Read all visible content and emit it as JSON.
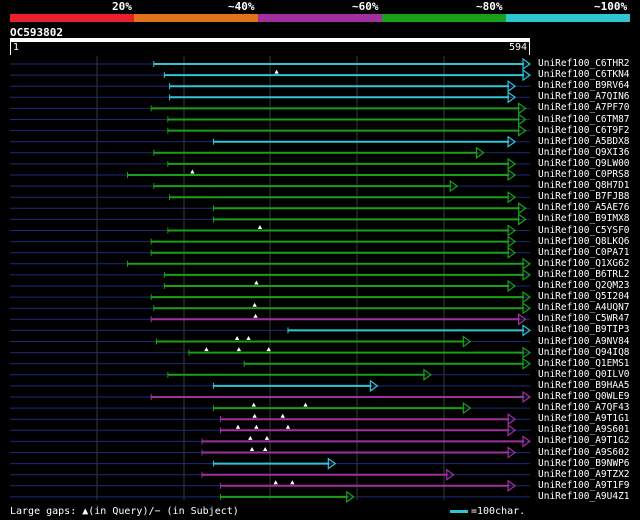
{
  "legend": {
    "segments": [
      {
        "label": "20%",
        "color": "#e8202a"
      },
      {
        "label": "~40%",
        "color": "#e0721e"
      },
      {
        "label": "~60%",
        "color": "#a030a0"
      },
      {
        "label": "~80%",
        "color": "#18a018"
      },
      {
        "label": "~100%",
        "color": "#2fc6d4"
      }
    ]
  },
  "query": {
    "id": "OC593802",
    "start": "1",
    "end": "594",
    "length": 594
  },
  "hits": [
    {
      "label": "UniRef100_C6THR2",
      "color": "#2fc6d4",
      "start": 165,
      "end": 594,
      "marks": []
    },
    {
      "label": "UniRef100_C6TKN4",
      "color": "#2fc6d4",
      "start": 177,
      "end": 594,
      "marks": [
        305
      ]
    },
    {
      "label": "UniRef100_B9RV64",
      "color": "#2fc6d4",
      "start": 183,
      "end": 577,
      "marks": []
    },
    {
      "label": "UniRef100_A7QIN6",
      "color": "#2fc6d4",
      "start": 183,
      "end": 577,
      "marks": []
    },
    {
      "label": "UniRef100_A7PF70",
      "color": "#18a018",
      "start": 162,
      "end": 589,
      "marks": []
    },
    {
      "label": "UniRef100_C6TM87",
      "color": "#18a018",
      "start": 181,
      "end": 589,
      "marks": []
    },
    {
      "label": "UniRef100_C6T9F2",
      "color": "#18a018",
      "start": 181,
      "end": 589,
      "marks": []
    },
    {
      "label": "UniRef100_A5BDX8",
      "color": "#2fc6d4",
      "start": 233,
      "end": 577,
      "marks": []
    },
    {
      "label": "UniRef100_Q9XI36",
      "color": "#18a018",
      "start": 165,
      "end": 541,
      "marks": []
    },
    {
      "label": "UniRef100_Q9LW00",
      "color": "#18a018",
      "start": 181,
      "end": 577,
      "marks": []
    },
    {
      "label": "UniRef100_C0PRS8",
      "color": "#18a018",
      "start": 135,
      "end": 577,
      "marks": [
        209
      ]
    },
    {
      "label": "UniRef100_Q8H7D1",
      "color": "#18a018",
      "start": 165,
      "end": 511,
      "marks": []
    },
    {
      "label": "UniRef100_B7FJB8",
      "color": "#18a018",
      "start": 183,
      "end": 577,
      "marks": []
    },
    {
      "label": "UniRef100_A5AE76",
      "color": "#18a018",
      "start": 233,
      "end": 589,
      "marks": []
    },
    {
      "label": "UniRef100_B9IMX8",
      "color": "#18a018",
      "start": 233,
      "end": 589,
      "marks": []
    },
    {
      "label": "UniRef100_C5YSF0",
      "color": "#18a018",
      "start": 181,
      "end": 577,
      "marks": [
        286
      ]
    },
    {
      "label": "UniRef100_Q8LKQ6",
      "color": "#18a018",
      "start": 162,
      "end": 577,
      "marks": []
    },
    {
      "label": "UniRef100_C0PA71",
      "color": "#18a018",
      "start": 162,
      "end": 577,
      "marks": []
    },
    {
      "label": "UniRef100_Q1XG62",
      "color": "#18a018",
      "start": 135,
      "end": 594,
      "marks": []
    },
    {
      "label": "UniRef100_B6TRL2",
      "color": "#18a018",
      "start": 177,
      "end": 594,
      "marks": []
    },
    {
      "label": "UniRef100_Q2QM23",
      "color": "#18a018",
      "start": 177,
      "end": 577,
      "marks": [
        282
      ]
    },
    {
      "label": "UniRef100_Q5I204",
      "color": "#18a018",
      "start": 162,
      "end": 594,
      "marks": []
    },
    {
      "label": "UniRef100_A4UQN7",
      "color": "#18a018",
      "start": 165,
      "end": 594,
      "marks": [
        280
      ]
    },
    {
      "label": "UniRef100_C5WR47",
      "color": "#a030a0",
      "start": 162,
      "end": 589,
      "marks": [
        281
      ]
    },
    {
      "label": "UniRef100_B9TIP3",
      "color": "#2fc6d4",
      "start": 318,
      "end": 594,
      "marks": []
    },
    {
      "label": "UniRef100_A9NV84",
      "color": "#18a018",
      "start": 168,
      "end": 526,
      "marks": [
        260,
        273
      ]
    },
    {
      "label": "UniRef100_Q94IQ8",
      "color": "#18a018",
      "start": 205,
      "end": 594,
      "marks": [
        225,
        262,
        296
      ]
    },
    {
      "label": "UniRef100_Q1EMS1",
      "color": "#18a018",
      "start": 268,
      "end": 594,
      "marks": []
    },
    {
      "label": "UniRef100_Q0ILV0",
      "color": "#18a018",
      "start": 181,
      "end": 481,
      "marks": []
    },
    {
      "label": "UniRef100_B9HAA5",
      "color": "#2fc6d4",
      "start": 233,
      "end": 420,
      "marks": []
    },
    {
      "label": "UniRef100_Q0WLE9",
      "color": "#a030a0",
      "start": 162,
      "end": 594,
      "marks": []
    },
    {
      "label": "UniRef100_A7QF43",
      "color": "#18a018",
      "start": 233,
      "end": 526,
      "marks": [
        279,
        338
      ]
    },
    {
      "label": "UniRef100_A9T1G1",
      "color": "#a030a0",
      "start": 241,
      "end": 577,
      "marks": [
        280,
        312
      ]
    },
    {
      "label": "UniRef100_A9S601",
      "color": "#a030a0",
      "start": 241,
      "end": 577,
      "marks": [
        261,
        282,
        318
      ]
    },
    {
      "label": "UniRef100_A9T1G2",
      "color": "#a030a0",
      "start": 220,
      "end": 594,
      "marks": [
        275,
        294
      ]
    },
    {
      "label": "UniRef100_A9S602",
      "color": "#a030a0",
      "start": 220,
      "end": 577,
      "marks": [
        277,
        292
      ]
    },
    {
      "label": "UniRef100_B9NWP6",
      "color": "#2fc6d4",
      "start": 233,
      "end": 372,
      "marks": []
    },
    {
      "label": "UniRef100_A9TZX2",
      "color": "#a030a0",
      "start": 220,
      "end": 507,
      "marks": []
    },
    {
      "label": "UniRef100_A9T1F9",
      "color": "#a030a0",
      "start": 241,
      "end": 577,
      "marks": [
        304,
        323
      ]
    },
    {
      "label": "UniRef100_A9U4Z1",
      "color": "#18a018",
      "start": 241,
      "end": 393,
      "marks": []
    }
  ],
  "footer": {
    "text": "Large gaps: ▲(in Query)/− (in Subject)"
  },
  "scale_key": {
    "label": "=100char.",
    "color": "#2fc6d4"
  }
}
